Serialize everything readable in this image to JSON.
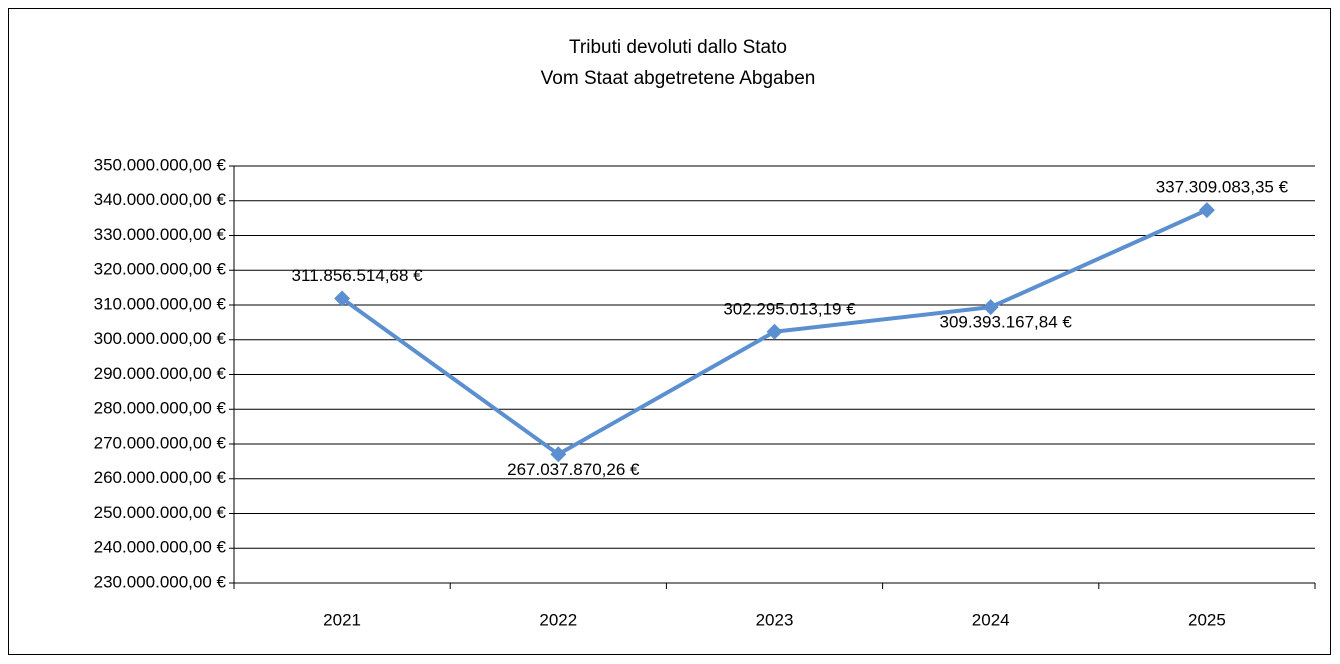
{
  "chart_data": {
    "type": "line",
    "title": "Tributi devoluti dallo Stato",
    "subtitle": "Vom Staat abgetretene Abgaben",
    "categories": [
      "2021",
      "2022",
      "2023",
      "2024",
      "2025"
    ],
    "series": [
      {
        "name": "Tributi devoluti dallo Stato",
        "color": "#5b8fd0",
        "values": [
          311856514.68,
          267037870.26,
          302295013.19,
          309393167.84,
          337309083.35
        ],
        "value_labels": [
          "311.856.514,68 €",
          "267.037.870,26 €",
          "302.295.013,19 €",
          "309.393.167,84 €",
          "337.309.083,35 €"
        ]
      }
    ],
    "ylim": [
      230000000,
      350000000
    ],
    "yticks": [
      {
        "value": 230000000,
        "label": "230.000.000,00 €"
      },
      {
        "value": 240000000,
        "label": "240.000.000,00 €"
      },
      {
        "value": 250000000,
        "label": "250.000.000,00 €"
      },
      {
        "value": 260000000,
        "label": "260.000.000,00 €"
      },
      {
        "value": 270000000,
        "label": "270.000.000,00 €"
      },
      {
        "value": 280000000,
        "label": "280.000.000,00 €"
      },
      {
        "value": 290000000,
        "label": "290.000.000,00 €"
      },
      {
        "value": 300000000,
        "label": "300.000.000,00 €"
      },
      {
        "value": 310000000,
        "label": "310.000.000,00 €"
      },
      {
        "value": 320000000,
        "label": "320.000.000,00 €"
      },
      {
        "value": 330000000,
        "label": "330.000.000,00 €"
      },
      {
        "value": 340000000,
        "label": "340.000.000,00 €"
      },
      {
        "value": 350000000,
        "label": "350.000.000,00 €"
      }
    ],
    "grid": true
  }
}
